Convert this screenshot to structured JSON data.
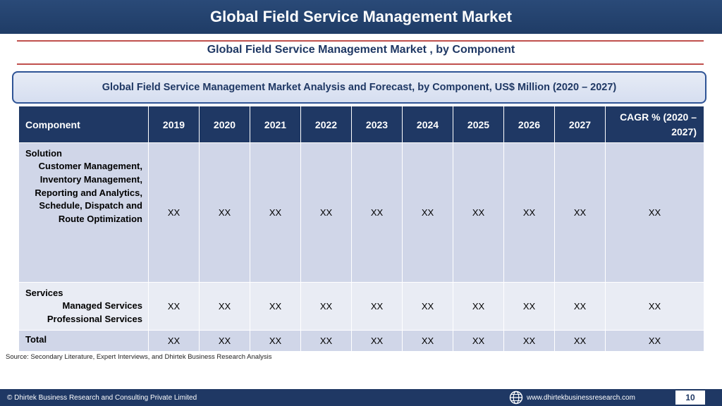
{
  "header": {
    "title": "Global Field Service Management Market"
  },
  "subtitle": "Global Field Service Management Market , by Component",
  "banner": "Global Field Service Management Market  Analysis and Forecast, by Component, US$ Million (2020 – 2027)",
  "table": {
    "columns": [
      "Component",
      "2019",
      "2020",
      "2021",
      "2022",
      "2023",
      "2024",
      "2025",
      "2026",
      "2027",
      "CAGR % (2020 – 2027)"
    ],
    "rows": [
      {
        "segment": "Solution",
        "items": [
          "Customer Management,",
          "Inventory Management,",
          "Reporting and Analytics,",
          "Schedule, Dispatch and Route Optimization"
        ],
        "values": [
          "XX",
          "XX",
          "XX",
          "XX",
          "XX",
          "XX",
          "XX",
          "XX",
          "XX",
          "XX"
        ]
      },
      {
        "segment": "Services",
        "items": [
          "Managed Services",
          "Professional Services"
        ],
        "values": [
          "XX",
          "XX",
          "XX",
          "XX",
          "XX",
          "XX",
          "XX",
          "XX",
          "XX",
          "XX"
        ]
      },
      {
        "segment": "Total",
        "items": [],
        "values": [
          "XX",
          "XX",
          "XX",
          "XX",
          "XX",
          "XX",
          "XX",
          "XX",
          "XX",
          "XX"
        ]
      }
    ]
  },
  "source": "Source: Secondary Literature, Expert Interviews, and Dhirtek Business Research Analysis",
  "footer": {
    "copyright": "© Dhirtek Business Research and Consulting Private Limited",
    "website": "www.dhirtekbusinessresearch.com",
    "page_number": "10",
    "globe_icon": "globe-icon"
  },
  "colors": {
    "header_bg": "#1f3864",
    "accent_rule": "#c0504d",
    "row_odd": "#d0d6e8",
    "row_even": "#e9ecf4"
  }
}
